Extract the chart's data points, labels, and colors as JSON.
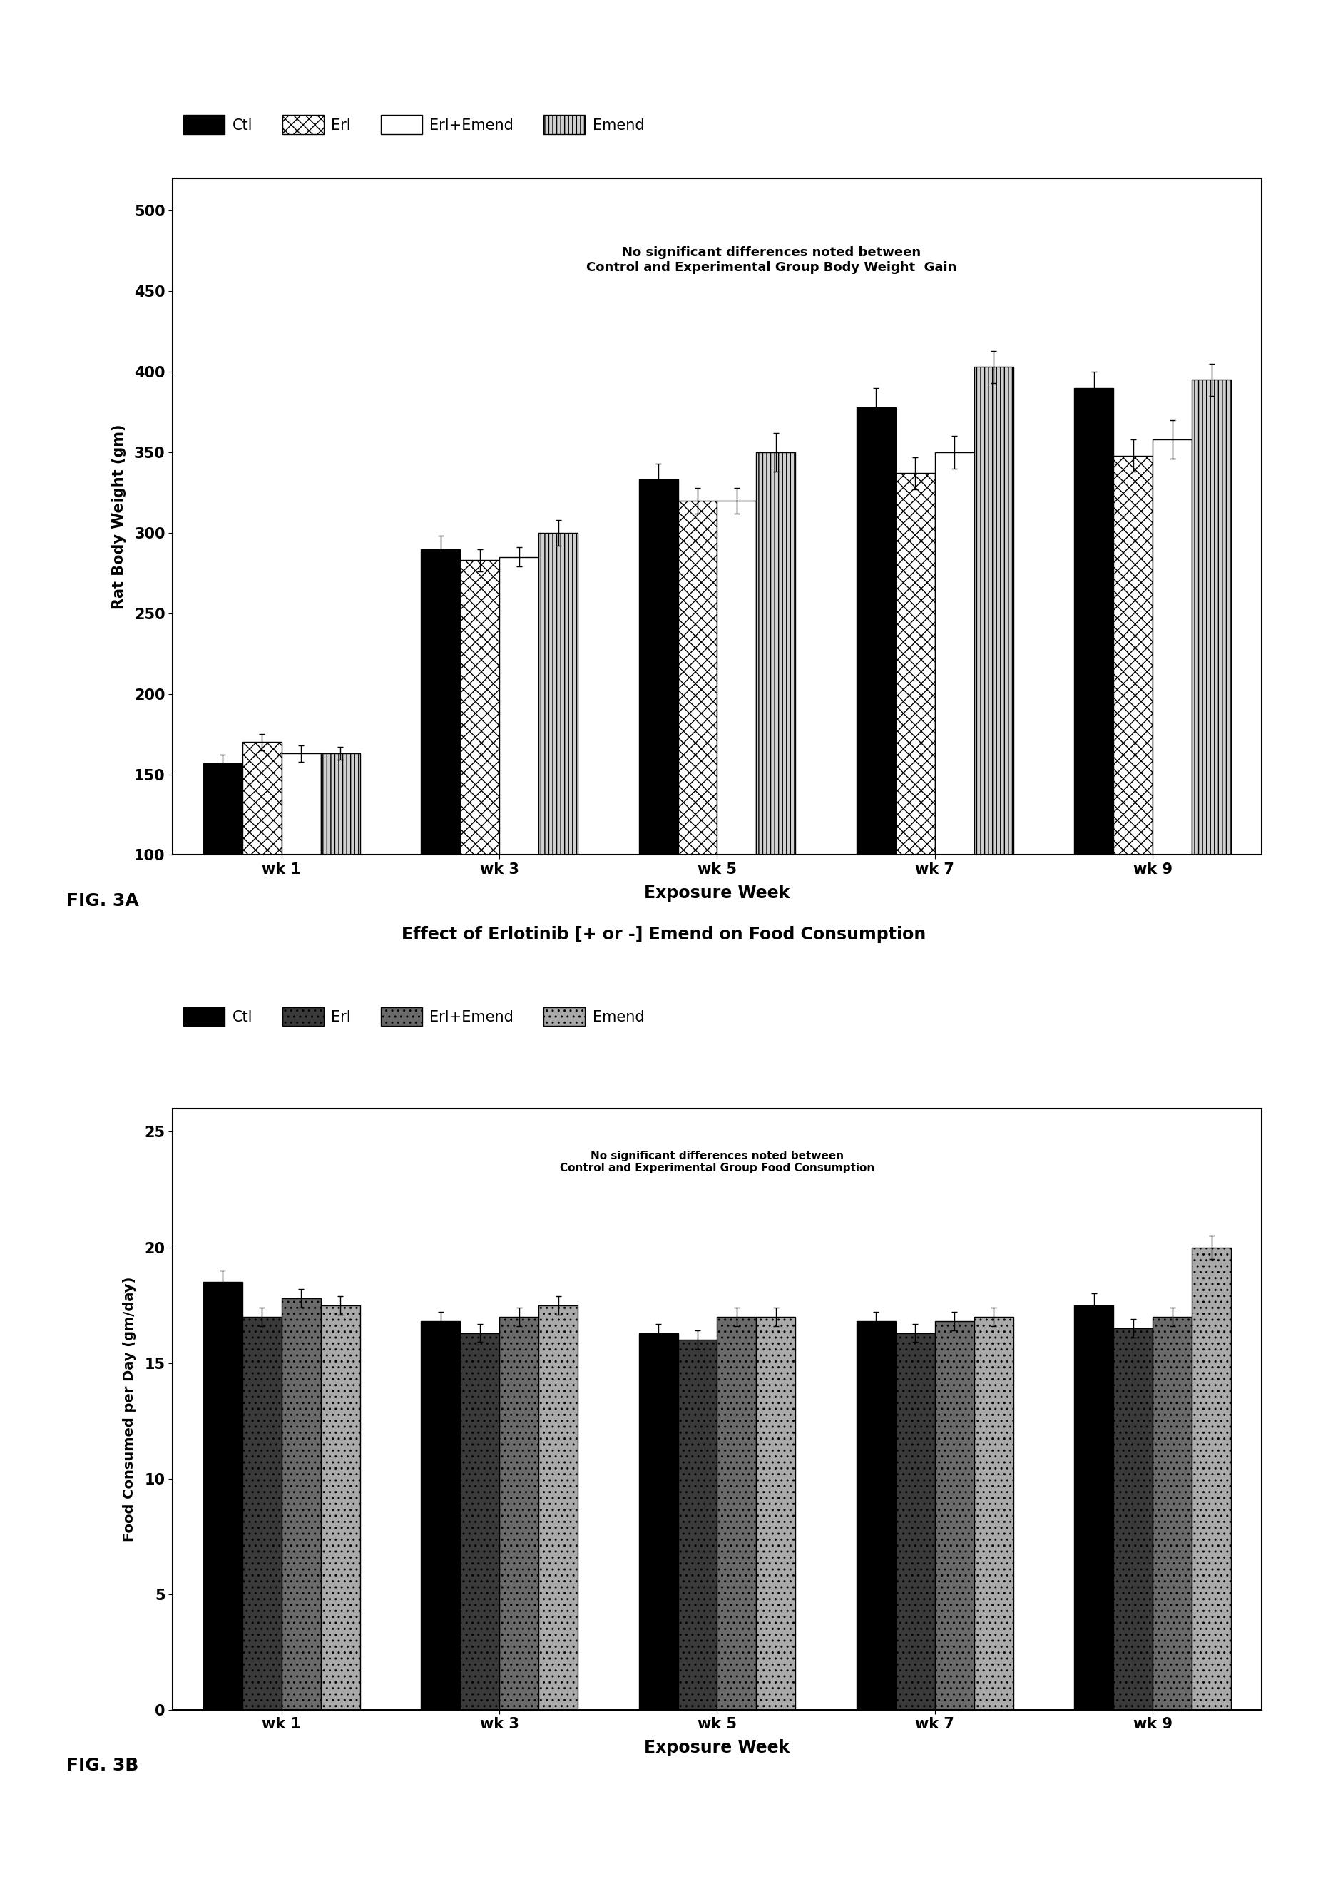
{
  "fig3a": {
    "title_inside": "No significant differences noted between\nControl and Experimental Group Body Weight  Gain",
    "ylabel": "Rat Body Weight (gm)",
    "xlabel": "Exposure Week",
    "weeks": [
      "wk 1",
      "wk 3",
      "wk 5",
      "wk 7",
      "wk 9"
    ],
    "Ctl": [
      157,
      290,
      333,
      378,
      390
    ],
    "Erl": [
      170,
      283,
      320,
      337,
      348
    ],
    "ErlEmend": [
      163,
      285,
      320,
      350,
      358
    ],
    "Emend": [
      163,
      300,
      350,
      403,
      395
    ],
    "Ctl_err": [
      5,
      8,
      10,
      12,
      10
    ],
    "Erl_err": [
      5,
      7,
      8,
      10,
      10
    ],
    "ErlEmend_err": [
      5,
      6,
      8,
      10,
      12
    ],
    "Emend_err": [
      4,
      8,
      12,
      10,
      10
    ],
    "ylim": [
      100,
      520
    ],
    "yticks": [
      100,
      150,
      200,
      250,
      300,
      350,
      400,
      450,
      500
    ]
  },
  "fig3b": {
    "title": "Effect of Erlotinib [+ or -] Emend on Food Consumption",
    "title_inside": "No significant differences noted between\nControl and Experimental Group Food Consumption",
    "ylabel": "Food Consumed per Day (gm/day)",
    "xlabel": "Exposure Week",
    "weeks": [
      "wk 1",
      "wk 3",
      "wk 5",
      "wk 7",
      "wk 9"
    ],
    "Ctl": [
      18.5,
      16.8,
      16.3,
      16.8,
      17.5
    ],
    "Erl": [
      17.0,
      16.3,
      16.0,
      16.3,
      16.5
    ],
    "ErlEmend": [
      17.8,
      17.0,
      17.0,
      16.8,
      17.0
    ],
    "Emend": [
      17.5,
      17.5,
      17.0,
      17.0,
      20.0
    ],
    "Ctl_err": [
      0.5,
      0.4,
      0.4,
      0.4,
      0.5
    ],
    "Erl_err": [
      0.4,
      0.4,
      0.4,
      0.4,
      0.4
    ],
    "ErlEmend_err": [
      0.4,
      0.4,
      0.4,
      0.4,
      0.4
    ],
    "Emend_err": [
      0.4,
      0.4,
      0.4,
      0.4,
      0.5
    ],
    "ylim": [
      0,
      26
    ],
    "yticks": [
      0,
      5,
      10,
      15,
      20,
      25
    ]
  },
  "fig3a_label": "FIG. 3A",
  "fig3b_label": "FIG. 3B",
  "bar_width": 0.18
}
